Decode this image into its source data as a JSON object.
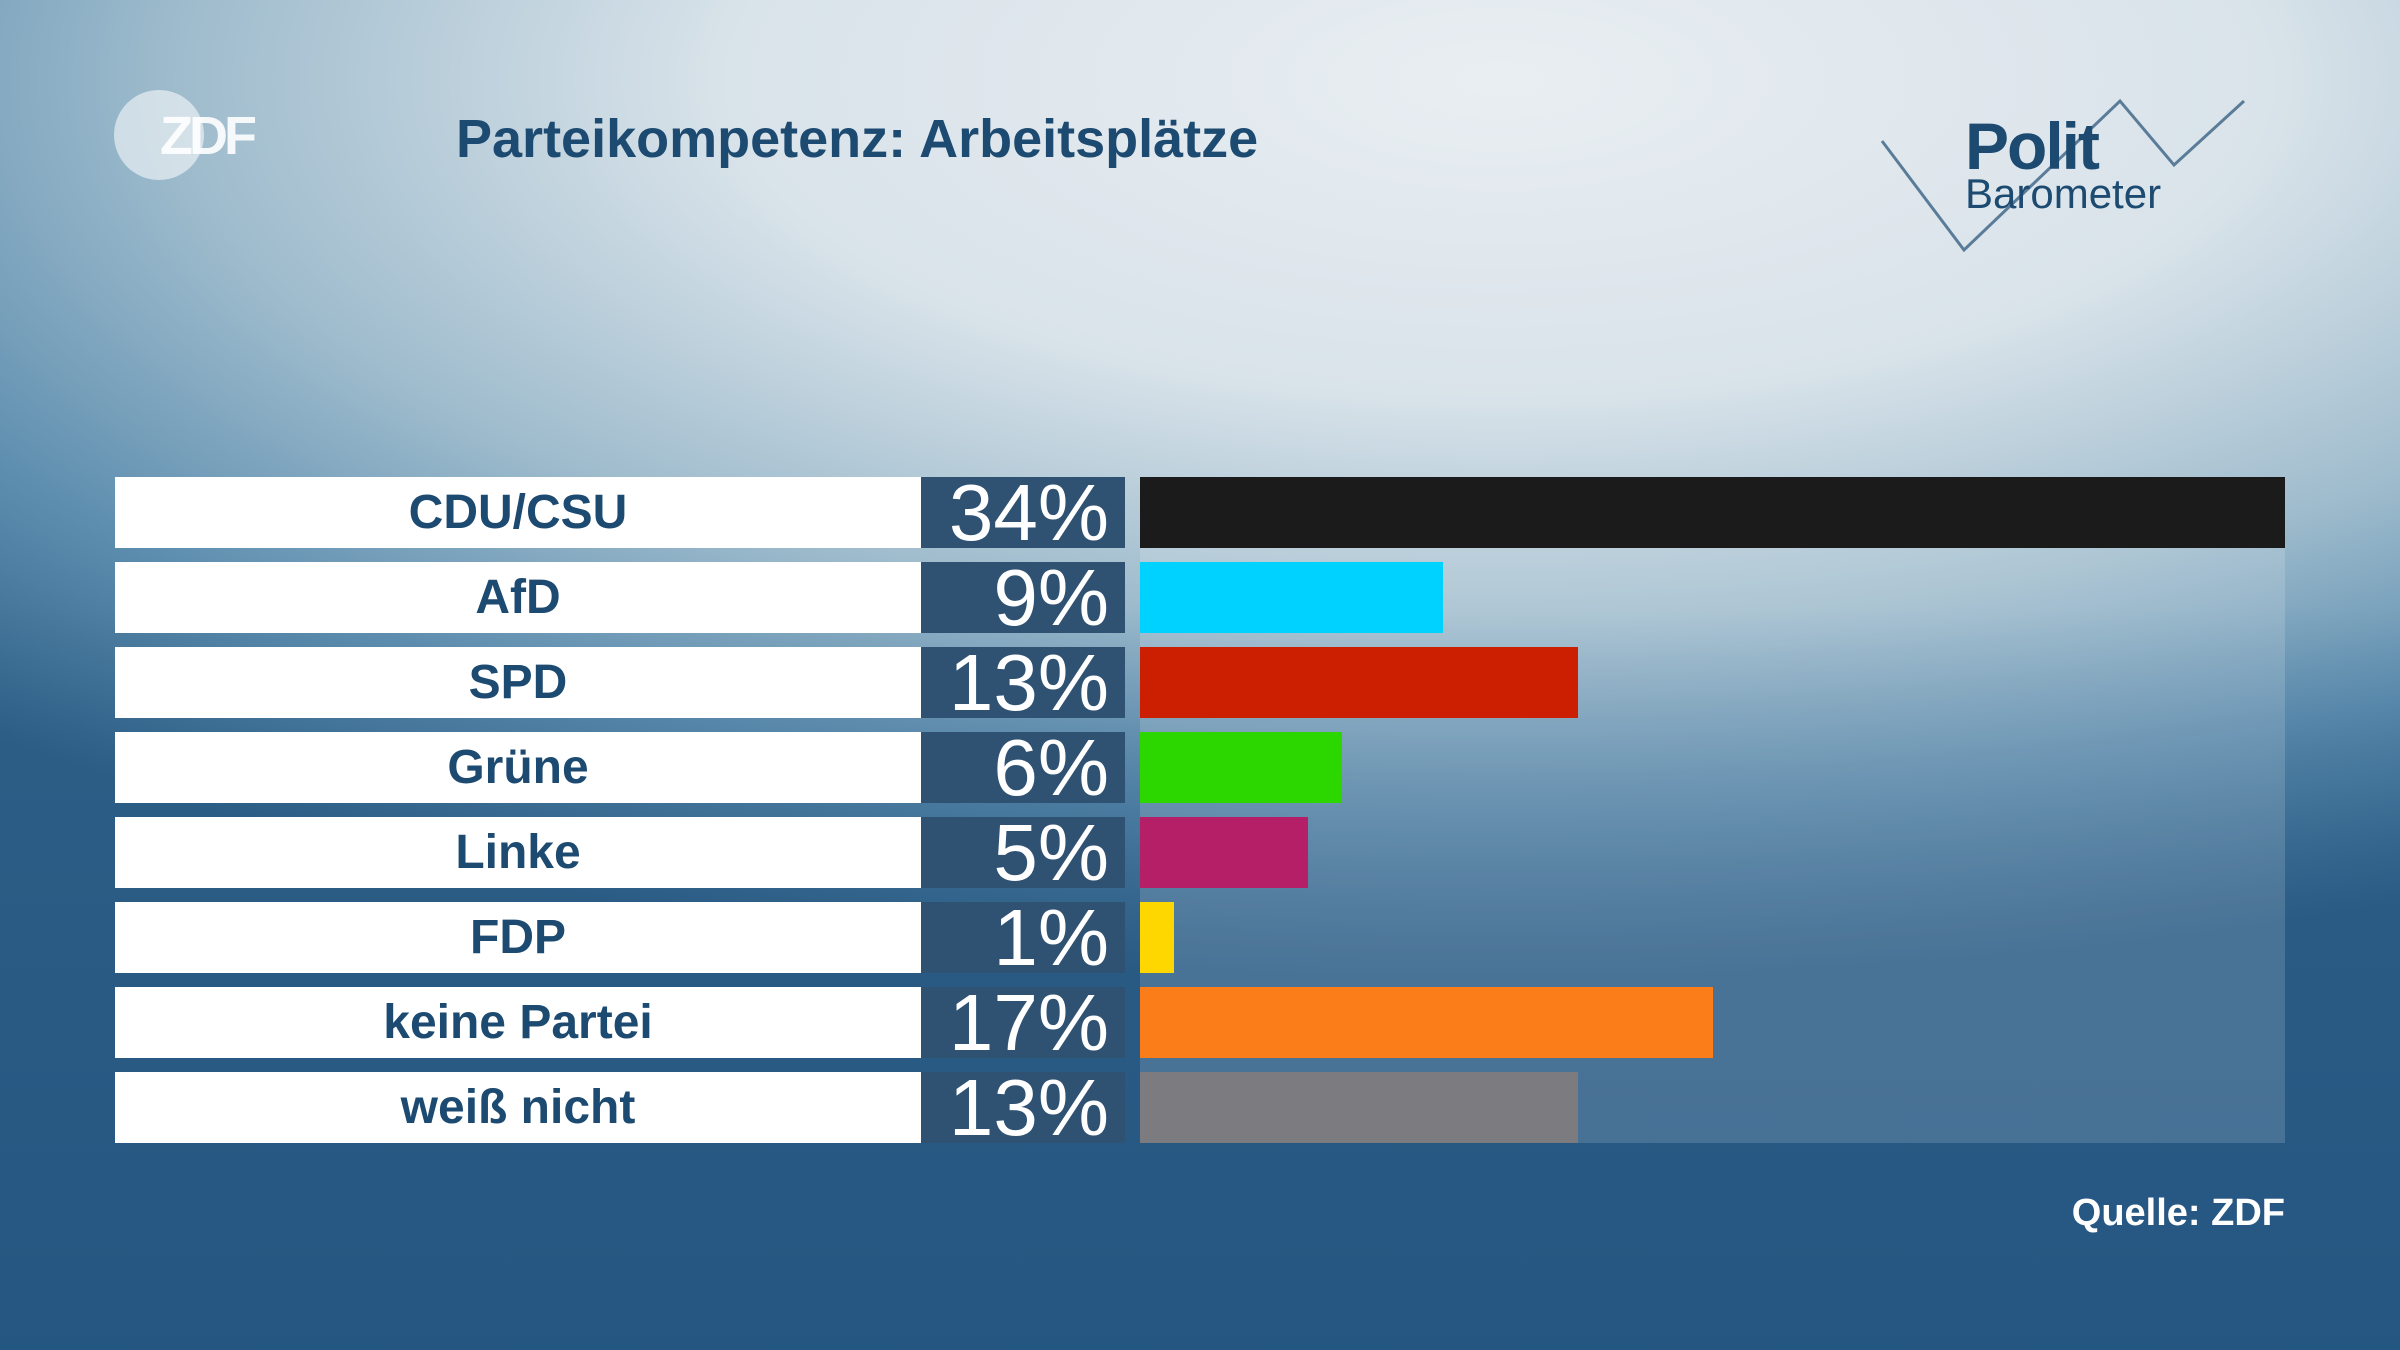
{
  "header": {
    "logo": "ZDF",
    "title": "Parteikompetenz: Arbeitsplätze",
    "brand_polit": "Polit",
    "brand_barometer": "Barometer"
  },
  "chart_data": {
    "type": "bar",
    "orientation": "horizontal",
    "title": "Parteikompetenz: Arbeitsplätze",
    "categories": [
      "CDU/CSU",
      "AfD",
      "SPD",
      "Grüne",
      "Linke",
      "FDP",
      "keine Partei",
      "weiß nicht"
    ],
    "values": [
      34,
      9,
      13,
      6,
      5,
      1,
      17,
      13
    ],
    "labels": [
      "34%",
      "9%",
      "13%",
      "6%",
      "5%",
      "1%",
      "17%",
      "13%"
    ],
    "colors": [
      "#1b1b1b",
      "#00d2ff",
      "#cc1e00",
      "#2cd700",
      "#b41f68",
      "#ffd700",
      "#fa7d19",
      "#7b7b80"
    ],
    "xlim": [
      0,
      34
    ],
    "unit": "%"
  },
  "footer": {
    "source": "Quelle: ZDF"
  }
}
